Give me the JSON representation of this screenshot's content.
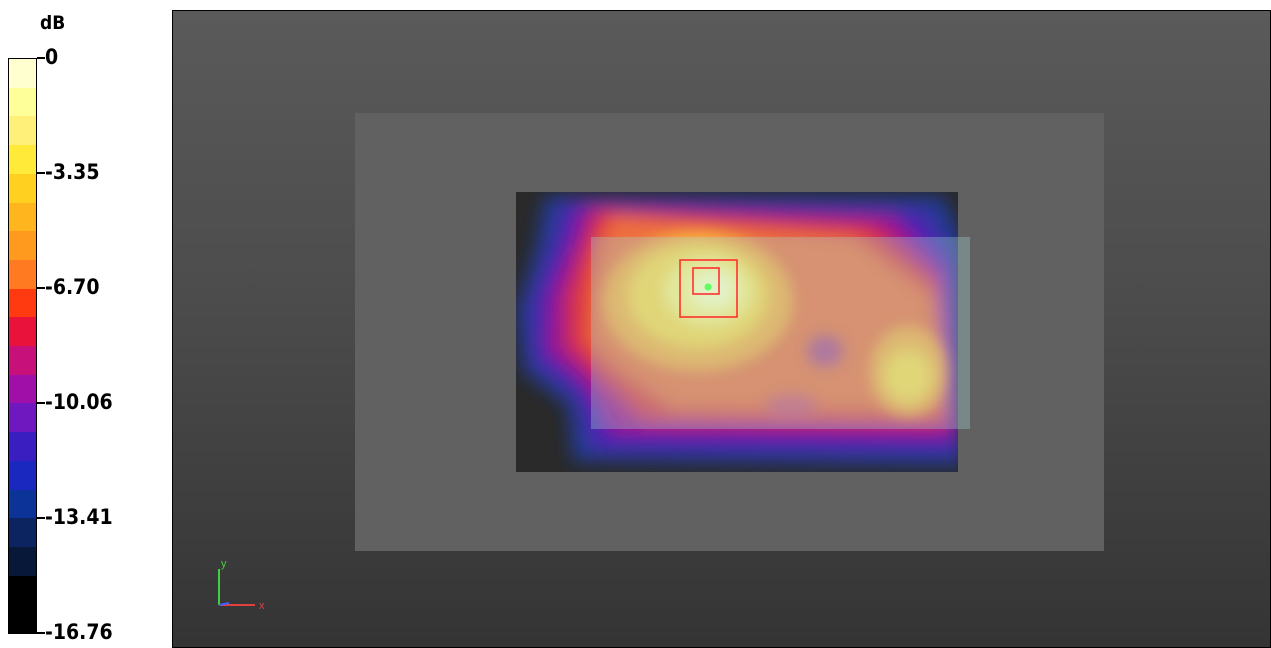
{
  "legend": {
    "unit": "dB",
    "ticks": [
      "0",
      "-3.35",
      "-6.70",
      "-10.06",
      "-13.41",
      "-16.76"
    ],
    "colors": [
      "#ffffd0",
      "#ffff99",
      "#fff07a",
      "#ffea3a",
      "#ffd020",
      "#ffb61e",
      "#ff9a1e",
      "#ff7a20",
      "#ff3a10",
      "#e8123a",
      "#c8107a",
      "#a010a8",
      "#7018c0",
      "#3a1ec0",
      "#1a28c0",
      "#0c3498",
      "#0c2460",
      "#081838",
      "#000000",
      "#000000"
    ]
  },
  "viewport": {
    "axis_labels": {
      "x": "x",
      "y": "y"
    },
    "colors": {
      "background": "#4c4c4c",
      "outer_plane": "#616161",
      "scan_area": "#2a2a2a",
      "overlay_plane": "#a8d8d8",
      "peak_markers": "#ff3030",
      "peak_point": "#60ff60"
    }
  }
}
